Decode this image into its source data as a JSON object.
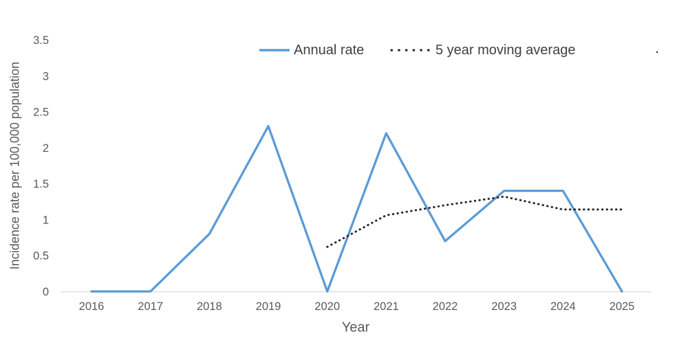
{
  "figure": {
    "background": "#ffffff"
  },
  "axes": {
    "y_title": "Incidence rate per 100,000 population",
    "x_title": "Year",
    "y_tick_labels": [
      "0",
      "0.5",
      "1",
      "1.5",
      "2",
      "2.5",
      "3",
      "3.5"
    ],
    "x_tick_labels": [
      "2016",
      "2017",
      "2018",
      "2019",
      "2020",
      "2021",
      "2022",
      "2023",
      "2024",
      "2025"
    ],
    "tick_text_color": "#595959",
    "axis_line_color": "#d9d9d9"
  },
  "legend": {
    "items": [
      {
        "label": "Annual rate",
        "color": "#5b9bd5",
        "style": "solid"
      },
      {
        "label": "5 year moving average",
        "color": "#262626",
        "style": "dotted"
      }
    ]
  },
  "stray_text": ".",
  "chart_data": {
    "type": "line",
    "title": "",
    "categories": [
      2016,
      2017,
      2018,
      2019,
      2020,
      2021,
      2022,
      2023,
      2024,
      2025
    ],
    "series": [
      {
        "name": "Annual rate",
        "values": [
          0,
          0,
          0.8,
          2.3,
          0,
          2.2,
          0.7,
          1.4,
          1.4,
          0
        ],
        "color": "#5b9bd5",
        "line_style": "solid"
      },
      {
        "name": "5 year moving average",
        "values": [
          null,
          null,
          null,
          null,
          0.62,
          1.06,
          1.2,
          1.32,
          1.14,
          1.14
        ],
        "color": "#262626",
        "line_style": "dotted"
      }
    ],
    "xlabel": "Year",
    "ylabel": "Incidence rate per 100,000 population",
    "ylim": [
      0,
      3.5
    ],
    "y_tick_step": 0.5,
    "grid": false,
    "legend_position": "top"
  }
}
